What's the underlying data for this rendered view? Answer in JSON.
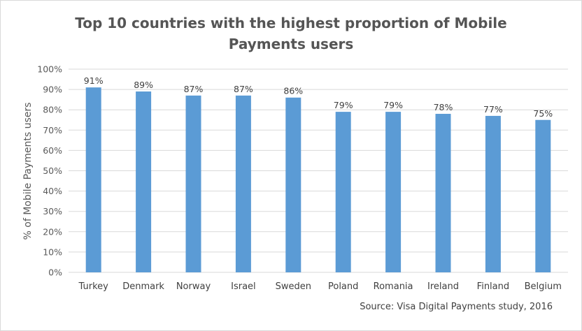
{
  "chart_data": {
    "type": "bar",
    "title_lines": [
      "Top 10 countries with the highest proportion of Mobile",
      "Payments users"
    ],
    "ylabel": "% of Mobile Payments users",
    "xlabel": "",
    "categories": [
      "Turkey",
      "Denmark",
      "Norway",
      "Israel",
      "Sweden",
      "Poland",
      "Romania",
      "Ireland",
      "Finland",
      "Belgium"
    ],
    "values": [
      91,
      89,
      87,
      87,
      86,
      79,
      79,
      78,
      77,
      75
    ],
    "data_labels": [
      "91%",
      "89%",
      "87%",
      "87%",
      "86%",
      "79%",
      "79%",
      "78%",
      "77%",
      "75%"
    ],
    "y_ticks": [
      0,
      10,
      20,
      30,
      40,
      50,
      60,
      70,
      80,
      90,
      100
    ],
    "y_tick_labels": [
      "0%",
      "10%",
      "20%",
      "30%",
      "40%",
      "50%",
      "60%",
      "70%",
      "80%",
      "90%",
      "100%"
    ],
    "ylim": [
      0,
      100
    ],
    "grid": true,
    "legend": "none",
    "bar_color": "#5b9bd5",
    "grid_color": "#d9d9d9",
    "source": "Source: Visa Digital Payments study, 2016"
  }
}
